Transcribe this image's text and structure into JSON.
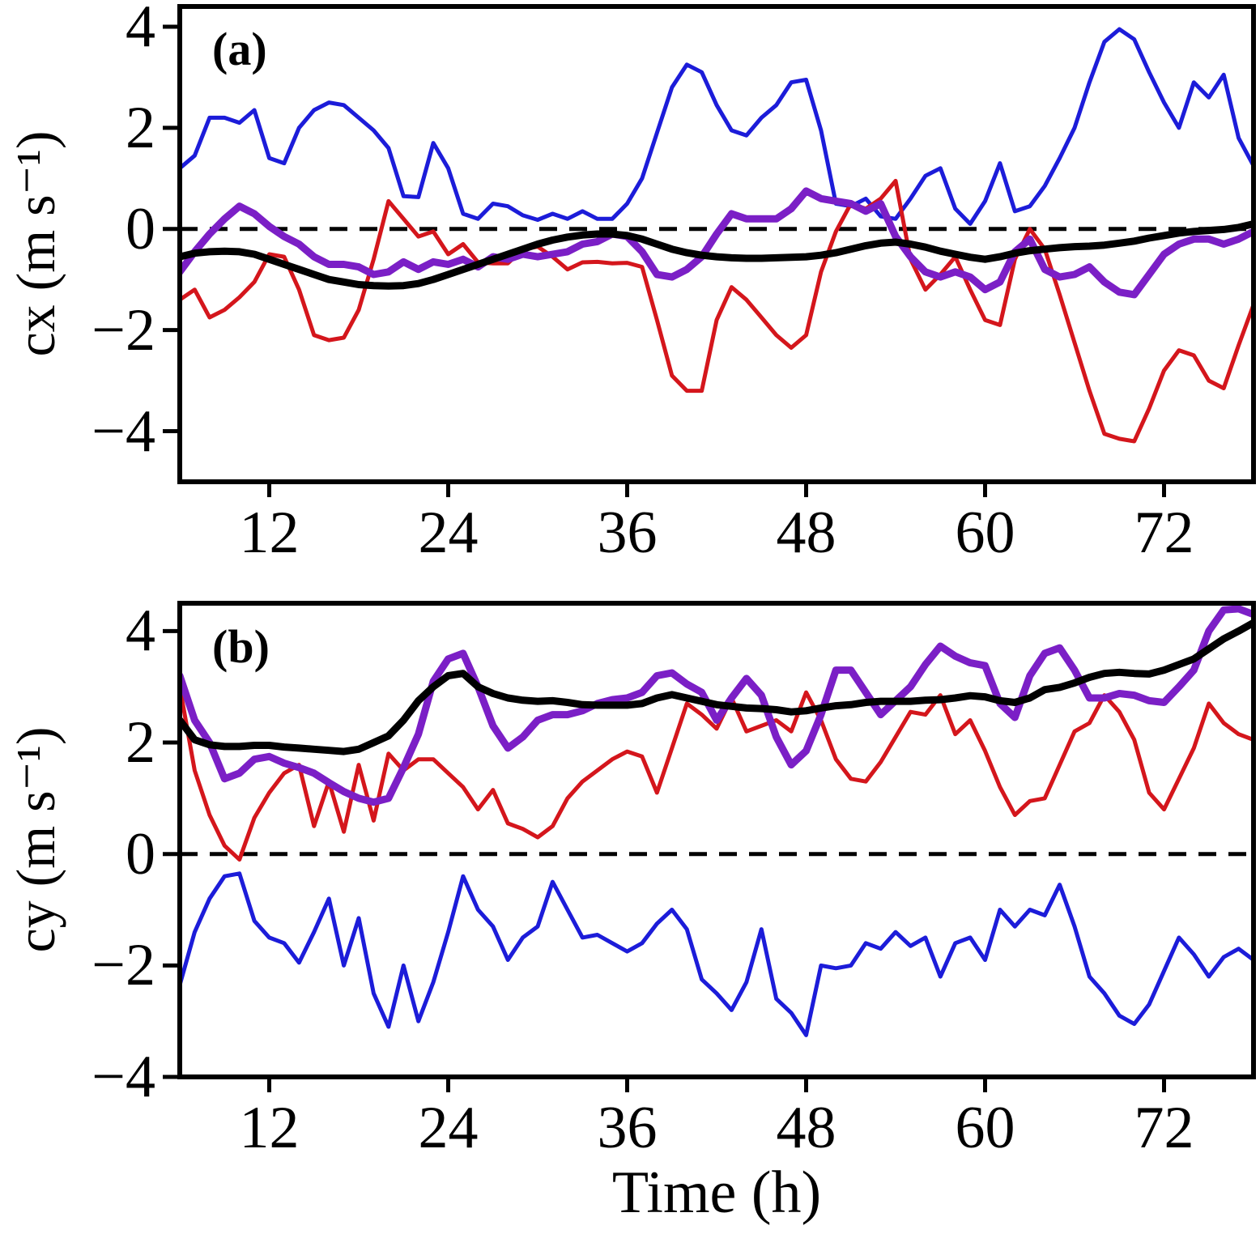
{
  "figure": {
    "background": "#ffffff",
    "xlabel": "Time (h)",
    "grid": false,
    "legend": "none"
  },
  "chart_data": [
    {
      "type": "line",
      "panel": "a",
      "title": "(a)",
      "ylabel": "cx (m s⁻¹)",
      "xlabel": "",
      "xlim": [
        6,
        78
      ],
      "ylim": [
        -5.0,
        4.4
      ],
      "xticks": [
        12,
        24,
        36,
        48,
        60,
        72
      ],
      "xticklabels": [
        "12",
        "24",
        "36",
        "48",
        "60",
        "72"
      ],
      "yticks": [
        4,
        2,
        0,
        -2,
        -4
      ],
      "yticklabels": [
        "4",
        "2",
        "0",
        "−2",
        "−4"
      ],
      "zero_line": true,
      "x": [
        6,
        7,
        8,
        9,
        10,
        11,
        12,
        13,
        14,
        15,
        16,
        17,
        18,
        19,
        20,
        21,
        22,
        23,
        24,
        25,
        26,
        27,
        28,
        29,
        30,
        31,
        32,
        33,
        34,
        35,
        36,
        37,
        38,
        39,
        40,
        41,
        42,
        43,
        44,
        45,
        46,
        47,
        48,
        49,
        50,
        51,
        52,
        53,
        54,
        55,
        56,
        57,
        58,
        59,
        60,
        61,
        62,
        63,
        64,
        65,
        66,
        67,
        68,
        69,
        70,
        71,
        72,
        73,
        74,
        75,
        76,
        77,
        78
      ],
      "series": [
        {
          "name": "series-blue",
          "color": "#1c1cd9",
          "width": 5,
          "values": [
            1.2,
            1.45,
            2.2,
            2.2,
            2.1,
            2.35,
            1.4,
            1.3,
            2.0,
            2.35,
            2.5,
            2.45,
            2.2,
            1.95,
            1.6,
            0.65,
            0.63,
            1.7,
            1.2,
            0.3,
            0.2,
            0.5,
            0.45,
            0.27,
            0.18,
            0.3,
            0.2,
            0.35,
            0.2,
            0.2,
            0.5,
            1.0,
            1.9,
            2.8,
            3.25,
            3.1,
            2.45,
            1.95,
            1.85,
            2.2,
            2.45,
            2.9,
            2.95,
            1.95,
            0.5,
            0.45,
            0.6,
            0.25,
            0.2,
            0.6,
            1.05,
            1.2,
            0.4,
            0.1,
            0.55,
            1.3,
            0.35,
            0.45,
            0.85,
            1.4,
            2.0,
            2.9,
            3.7,
            3.95,
            3.75,
            3.1,
            2.5,
            2.0,
            2.9,
            2.6,
            3.05,
            1.8,
            1.25
          ]
        },
        {
          "name": "series-red",
          "color": "#d4161c",
          "width": 5,
          "values": [
            -1.4,
            -1.2,
            -1.75,
            -1.6,
            -1.35,
            -1.05,
            -0.5,
            -0.55,
            -1.2,
            -2.1,
            -2.2,
            -2.15,
            -1.6,
            -0.6,
            0.55,
            0.2,
            -0.15,
            -0.05,
            -0.5,
            -0.3,
            -0.66,
            -0.68,
            -0.68,
            -0.4,
            -0.35,
            -0.55,
            -0.8,
            -0.66,
            -0.65,
            -0.68,
            -0.67,
            -0.75,
            -1.8,
            -2.9,
            -3.2,
            -3.2,
            -1.8,
            -1.15,
            -1.4,
            -1.75,
            -2.1,
            -2.35,
            -2.1,
            -0.85,
            -0.05,
            0.5,
            0.4,
            0.6,
            0.95,
            -0.6,
            -1.2,
            -0.9,
            -0.55,
            -1.2,
            -1.8,
            -1.9,
            -0.6,
            0.0,
            -0.4,
            -1.3,
            -2.25,
            -3.2,
            -4.05,
            -4.15,
            -4.2,
            -3.55,
            -2.8,
            -2.4,
            -2.5,
            -3.0,
            -3.15,
            -2.3,
            -1.5
          ]
        },
        {
          "name": "series-purple",
          "color": "#7b1fc6",
          "width": 9,
          "values": [
            -0.85,
            -0.45,
            -0.1,
            0.2,
            0.45,
            0.3,
            0.05,
            -0.15,
            -0.3,
            -0.55,
            -0.7,
            -0.7,
            -0.75,
            -0.9,
            -0.85,
            -0.65,
            -0.8,
            -0.65,
            -0.7,
            -0.6,
            -0.75,
            -0.55,
            -0.6,
            -0.5,
            -0.55,
            -0.5,
            -0.45,
            -0.3,
            -0.25,
            -0.1,
            -0.15,
            -0.45,
            -0.9,
            -0.95,
            -0.8,
            -0.55,
            -0.1,
            0.3,
            0.2,
            0.2,
            0.2,
            0.4,
            0.75,
            0.6,
            0.55,
            0.5,
            0.35,
            0.5,
            -0.15,
            -0.55,
            -0.85,
            -0.95,
            -0.85,
            -0.95,
            -1.2,
            -1.05,
            -0.45,
            -0.2,
            -0.8,
            -0.95,
            -0.9,
            -0.75,
            -1.05,
            -1.25,
            -1.3,
            -0.9,
            -0.5,
            -0.3,
            -0.2,
            -0.2,
            -0.3,
            -0.2,
            -0.05
          ]
        },
        {
          "name": "series-black-mean",
          "color": "#000000",
          "width": 9,
          "values": [
            -0.55,
            -0.48,
            -0.45,
            -0.44,
            -0.45,
            -0.5,
            -0.6,
            -0.7,
            -0.8,
            -0.9,
            -1.0,
            -1.05,
            -1.1,
            -1.12,
            -1.13,
            -1.12,
            -1.08,
            -1.0,
            -0.9,
            -0.8,
            -0.7,
            -0.6,
            -0.5,
            -0.4,
            -0.3,
            -0.22,
            -0.16,
            -0.12,
            -0.1,
            -0.1,
            -0.13,
            -0.2,
            -0.3,
            -0.4,
            -0.47,
            -0.52,
            -0.55,
            -0.57,
            -0.58,
            -0.58,
            -0.57,
            -0.56,
            -0.55,
            -0.52,
            -0.47,
            -0.4,
            -0.33,
            -0.28,
            -0.26,
            -0.3,
            -0.36,
            -0.44,
            -0.5,
            -0.56,
            -0.6,
            -0.55,
            -0.48,
            -0.43,
            -0.4,
            -0.37,
            -0.35,
            -0.34,
            -0.32,
            -0.28,
            -0.24,
            -0.18,
            -0.13,
            -0.08,
            -0.05,
            -0.03,
            -0.01,
            0.03,
            0.1
          ]
        }
      ]
    },
    {
      "type": "line",
      "panel": "b",
      "title": "(b)",
      "ylabel": "cy (m s⁻¹)",
      "xlabel": "Time (h)",
      "xlim": [
        6,
        78
      ],
      "ylim": [
        -4.0,
        4.5
      ],
      "xticks": [
        12,
        24,
        36,
        48,
        60,
        72
      ],
      "xticklabels": [
        "12",
        "24",
        "36",
        "48",
        "60",
        "72"
      ],
      "yticks": [
        4,
        2,
        0,
        -2,
        -4
      ],
      "yticklabels": [
        "4",
        "2",
        "0",
        "−2",
        "−4"
      ],
      "zero_line": true,
      "x": [
        6,
        7,
        8,
        9,
        10,
        11,
        12,
        13,
        14,
        15,
        16,
        17,
        18,
        19,
        20,
        21,
        22,
        23,
        24,
        25,
        26,
        27,
        28,
        29,
        30,
        31,
        32,
        33,
        34,
        35,
        36,
        37,
        38,
        39,
        40,
        41,
        42,
        43,
        44,
        45,
        46,
        47,
        48,
        49,
        50,
        51,
        52,
        53,
        54,
        55,
        56,
        57,
        58,
        59,
        60,
        61,
        62,
        63,
        64,
        65,
        66,
        67,
        68,
        69,
        70,
        71,
        72,
        73,
        74,
        75,
        76,
        77,
        78
      ],
      "series": [
        {
          "name": "series-blue",
          "color": "#1c1cd9",
          "width": 5,
          "values": [
            -2.35,
            -1.4,
            -0.8,
            -0.4,
            -0.35,
            -1.2,
            -1.5,
            -1.6,
            -1.95,
            -1.4,
            -0.8,
            -2.0,
            -1.15,
            -2.5,
            -3.1,
            -2.0,
            -3.0,
            -2.3,
            -1.4,
            -0.4,
            -1.0,
            -1.3,
            -1.9,
            -1.5,
            -1.3,
            -0.5,
            -1.0,
            -1.5,
            -1.45,
            -1.6,
            -1.75,
            -1.6,
            -1.25,
            -1.0,
            -1.35,
            -2.25,
            -2.5,
            -2.8,
            -2.3,
            -1.35,
            -2.6,
            -2.85,
            -3.25,
            -2.0,
            -2.05,
            -2.0,
            -1.6,
            -1.7,
            -1.4,
            -1.65,
            -1.5,
            -2.2,
            -1.6,
            -1.5,
            -1.9,
            -1.0,
            -1.3,
            -1.0,
            -1.1,
            -0.55,
            -1.3,
            -2.2,
            -2.5,
            -2.9,
            -3.05,
            -2.7,
            -2.1,
            -1.5,
            -1.8,
            -2.2,
            -1.85,
            -1.7,
            -1.9
          ]
        },
        {
          "name": "series-red",
          "color": "#d4161c",
          "width": 5,
          "values": [
            3.0,
            1.5,
            0.7,
            0.15,
            -0.1,
            0.65,
            1.1,
            1.45,
            1.6,
            0.5,
            1.3,
            0.4,
            1.6,
            0.6,
            1.8,
            1.5,
            1.7,
            1.7,
            1.45,
            1.2,
            0.8,
            1.15,
            0.55,
            0.45,
            0.3,
            0.5,
            1.0,
            1.3,
            1.5,
            1.7,
            1.84,
            1.75,
            1.1,
            1.9,
            2.7,
            2.5,
            2.25,
            2.8,
            2.2,
            2.3,
            2.4,
            2.2,
            2.9,
            2.4,
            1.7,
            1.35,
            1.3,
            1.65,
            2.1,
            2.55,
            2.5,
            2.85,
            2.15,
            2.4,
            1.85,
            1.2,
            0.7,
            0.95,
            1.0,
            1.6,
            2.2,
            2.35,
            2.85,
            2.55,
            2.05,
            1.1,
            0.8,
            1.35,
            1.9,
            2.7,
            2.35,
            2.15,
            2.05
          ]
        },
        {
          "name": "series-purple",
          "color": "#7b1fc6",
          "width": 9,
          "values": [
            3.2,
            2.4,
            2.0,
            1.35,
            1.45,
            1.7,
            1.75,
            1.63,
            1.55,
            1.45,
            1.28,
            1.12,
            1.0,
            0.93,
            1.0,
            1.55,
            2.15,
            3.1,
            3.5,
            3.6,
            3.0,
            2.3,
            1.9,
            2.1,
            2.4,
            2.5,
            2.5,
            2.57,
            2.7,
            2.77,
            2.8,
            2.9,
            3.2,
            3.25,
            3.05,
            2.9,
            2.4,
            2.8,
            3.15,
            2.85,
            2.1,
            1.6,
            1.85,
            2.5,
            3.3,
            3.3,
            2.9,
            2.5,
            2.75,
            3.0,
            3.4,
            3.73,
            3.55,
            3.43,
            3.38,
            2.7,
            2.45,
            3.2,
            3.6,
            3.7,
            3.3,
            2.8,
            2.8,
            2.88,
            2.85,
            2.75,
            2.72,
            3.0,
            3.3,
            4.0,
            4.38,
            4.4,
            4.3
          ]
        },
        {
          "name": "series-black-mean",
          "color": "#000000",
          "width": 9,
          "values": [
            2.4,
            2.05,
            1.96,
            1.93,
            1.93,
            1.95,
            1.95,
            1.92,
            1.9,
            1.88,
            1.86,
            1.84,
            1.88,
            2.0,
            2.12,
            2.4,
            2.75,
            3.0,
            3.2,
            3.24,
            3.0,
            2.88,
            2.8,
            2.76,
            2.74,
            2.75,
            2.72,
            2.68,
            2.67,
            2.67,
            2.67,
            2.7,
            2.8,
            2.86,
            2.8,
            2.74,
            2.68,
            2.65,
            2.62,
            2.61,
            2.59,
            2.55,
            2.57,
            2.62,
            2.66,
            2.68,
            2.72,
            2.74,
            2.74,
            2.74,
            2.76,
            2.77,
            2.8,
            2.84,
            2.82,
            2.75,
            2.72,
            2.8,
            2.95,
            2.99,
            3.07,
            3.17,
            3.24,
            3.26,
            3.24,
            3.23,
            3.3,
            3.4,
            3.5,
            3.68,
            3.86,
            4.0,
            4.15
          ]
        }
      ]
    }
  ]
}
